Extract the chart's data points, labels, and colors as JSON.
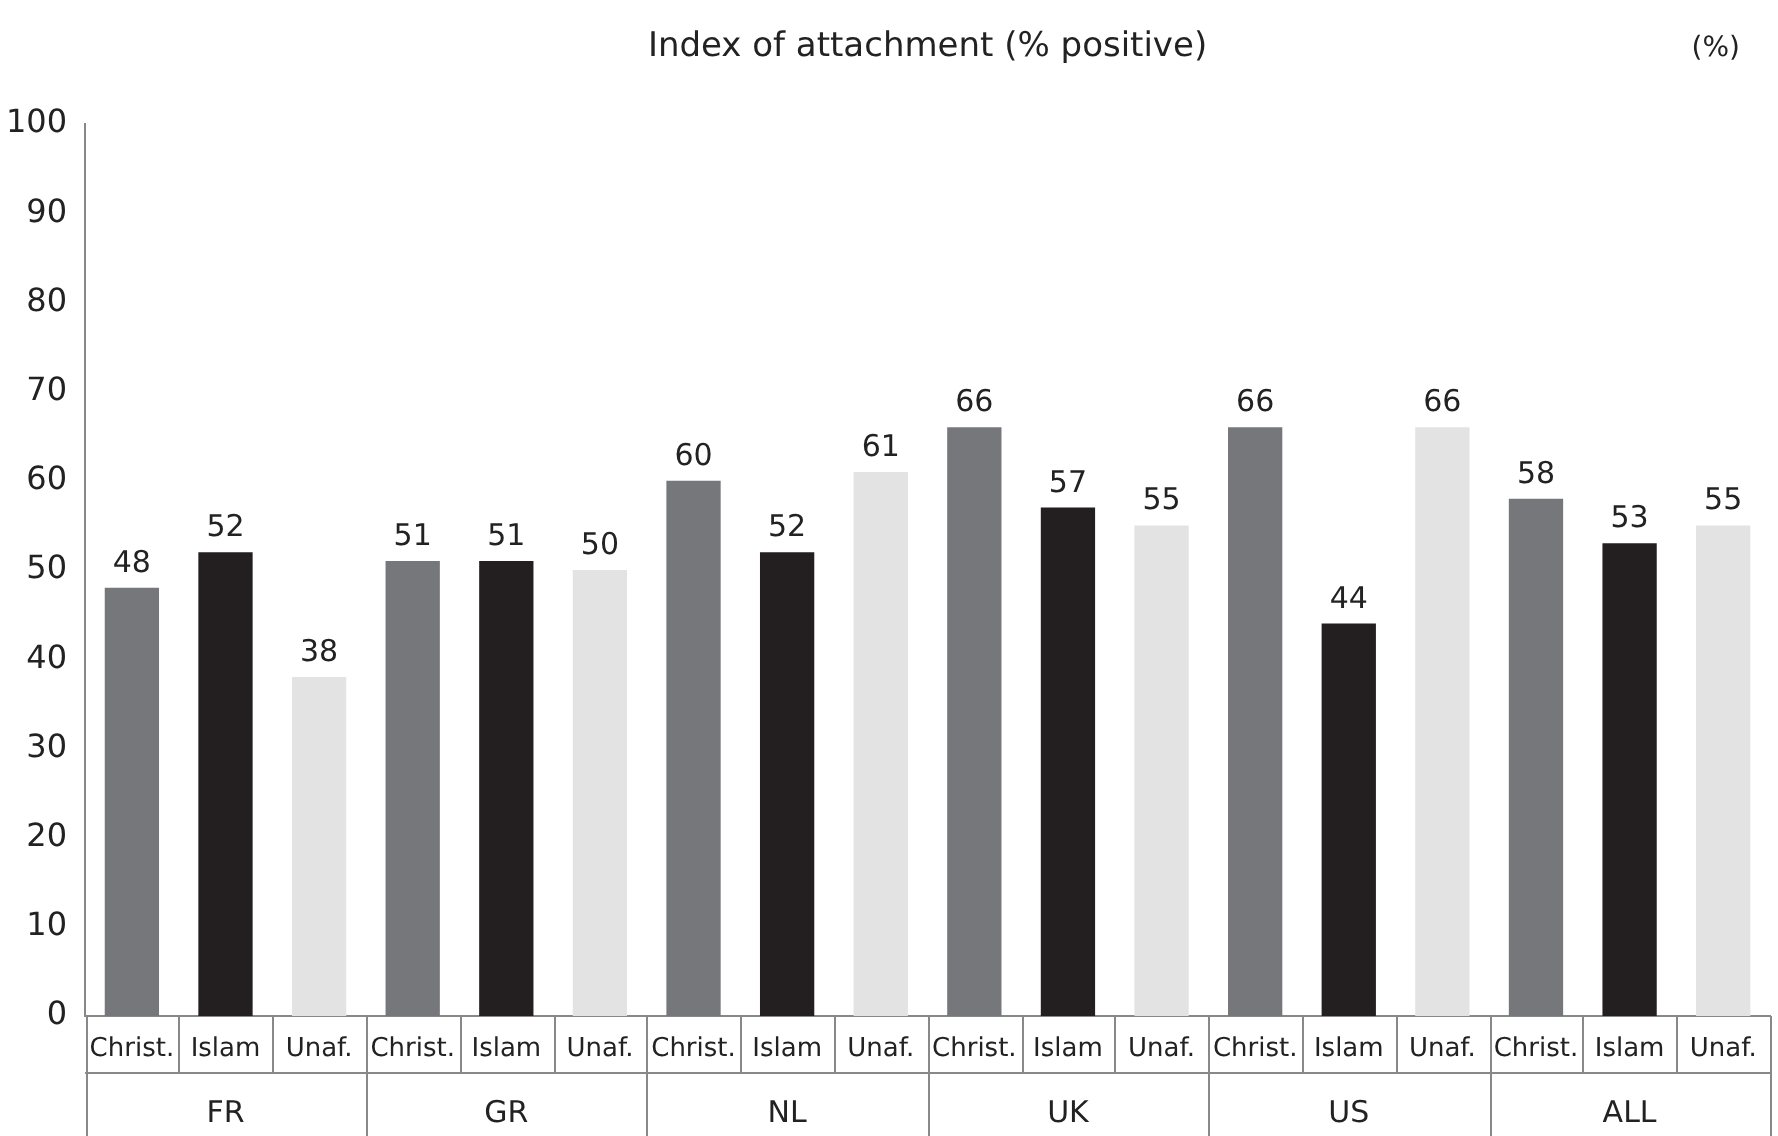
{
  "chart_data": {
    "type": "bar",
    "title": "Index of attachment (% positive)",
    "annotations": [
      "(%)"
    ],
    "categories": [
      "FR",
      "GR",
      "NL",
      "UK",
      "US",
      "ALL"
    ],
    "series": [
      {
        "name": "Christ.",
        "color": "#76777b",
        "values": [
          48,
          51,
          60,
          66,
          66,
          58
        ]
      },
      {
        "name": "Islam",
        "color": "#231f20",
        "values": [
          52,
          51,
          52,
          57,
          44,
          53
        ]
      },
      {
        "name": "Unaf.",
        "color": "#e3e3e3",
        "values": [
          38,
          50,
          61,
          55,
          66,
          55
        ]
      }
    ],
    "ylim": [
      0,
      100
    ],
    "yticks": [
      0,
      10,
      20,
      30,
      40,
      50,
      60,
      70,
      80,
      90,
      100
    ],
    "data_labels": true,
    "grid": false,
    "legend": false
  }
}
